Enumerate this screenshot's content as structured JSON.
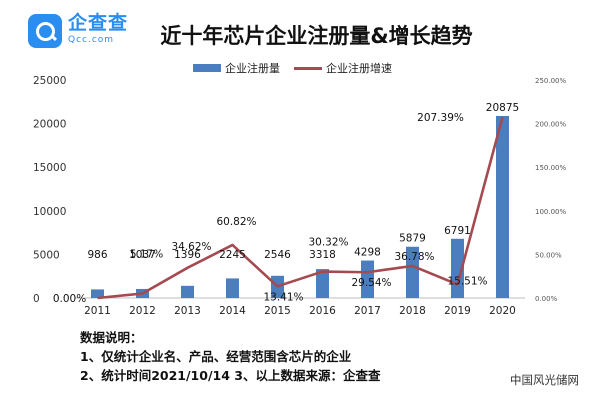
{
  "brand": {
    "name": "企查查",
    "domain": "Qcc.com",
    "color": "#2a8df0",
    "icon": "magnifier-icon"
  },
  "watermark": "中国风光储网",
  "notes": {
    "heading": "数据说明：",
    "line1": "1、仅统计企业名、产品、经营范围含芯片的企业",
    "line2": "2、统计时间2021/10/14   3、以上数据来源：企查查"
  },
  "chart_data": {
    "type": "bar",
    "title": "近十年芯片企业注册量&增长趋势",
    "categories": [
      "2011",
      "2012",
      "2013",
      "2014",
      "2015",
      "2016",
      "2017",
      "2018",
      "2019",
      "2020"
    ],
    "series": [
      {
        "name": "企业注册量",
        "type": "bar",
        "axis": "left",
        "color": "#4a7ebf",
        "values": [
          986,
          1037,
          1396,
          2245,
          2546,
          3318,
          4298,
          5879,
          6791,
          20875
        ],
        "labels": [
          "986",
          "1037",
          "1396",
          "2245",
          "2546",
          "3318",
          "4298",
          "5879",
          "6791",
          "20875"
        ]
      },
      {
        "name": "企业注册增速",
        "type": "line",
        "axis": "right",
        "color": "#a54a50",
        "values": [
          0.0,
          5.17,
          34.62,
          60.82,
          13.41,
          30.32,
          29.54,
          36.78,
          15.51,
          207.39
        ],
        "labels": [
          "0.00%",
          "5.17%",
          "34.62%",
          "60.82%",
          "13.41%",
          "30.32%",
          "29.54%",
          "36.78%",
          "15.51%",
          "207.39%"
        ]
      }
    ],
    "y_left": {
      "ylim": [
        0,
        25000
      ],
      "ticks": [
        "0",
        "5000",
        "10000",
        "15000",
        "20000",
        "25000"
      ]
    },
    "y_right": {
      "ylim": [
        0,
        250
      ],
      "ticks": [
        "0.00%",
        "50.00%",
        "100.00%",
        "150.00%",
        "200.00%",
        "250.00%"
      ]
    },
    "grid": false,
    "legend": "top"
  }
}
